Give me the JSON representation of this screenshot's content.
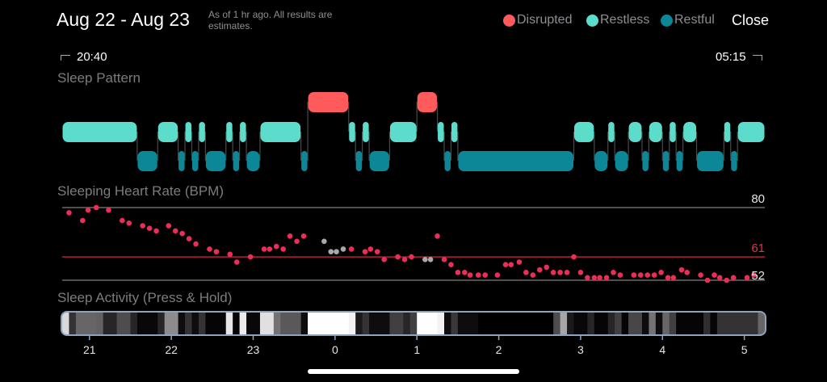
{
  "header": {
    "title": "Aug 22 - Aug 23",
    "subtitle": "As of 1 hr ago. All results are estimates.",
    "close_label": "Close"
  },
  "legend": [
    {
      "label": "Disrupted",
      "color": "#ff5a5c"
    },
    {
      "label": "Restless",
      "color": "#5cdccb"
    },
    {
      "label": "Restful",
      "color": "#0b8797"
    }
  ],
  "range": {
    "start": "20:40",
    "end": "05:15",
    "duration_min": 515
  },
  "sections": {
    "pattern": "Sleep Pattern",
    "heart_rate": "Sleeping Heart Rate (BPM)",
    "activity": "Sleep Activity (Press & Hold)"
  },
  "chart_data": {
    "sleep_pattern": {
      "type": "timeline",
      "units": "minutes after 20:40",
      "segments": [
        [
          "Restless",
          0,
          55
        ],
        [
          "Restful",
          55,
          70
        ],
        [
          "Restless",
          70,
          85
        ],
        [
          "Restful",
          85,
          90
        ],
        [
          "Restless",
          90,
          95
        ],
        [
          "Restful",
          95,
          100
        ],
        [
          "Restless",
          100,
          105
        ],
        [
          "Restful",
          105,
          120
        ],
        [
          "Restless",
          120,
          125
        ],
        [
          "Restful",
          125,
          130
        ],
        [
          "Restless",
          130,
          135
        ],
        [
          "Restful",
          135,
          145
        ],
        [
          "Restless",
          145,
          175
        ],
        [
          "Restful",
          175,
          180
        ],
        [
          "Disrupted",
          180,
          210
        ],
        [
          "Restless",
          210,
          215
        ],
        [
          "Restful",
          215,
          220
        ],
        [
          "Restless",
          220,
          225
        ],
        [
          "Restful",
          225,
          240
        ],
        [
          "Restless",
          240,
          260
        ],
        [
          "Disrupted",
          260,
          275
        ],
        [
          "Restless",
          275,
          280
        ],
        [
          "Restful",
          280,
          285
        ],
        [
          "Restless",
          285,
          290
        ],
        [
          "Restful",
          290,
          375
        ],
        [
          "Restless",
          375,
          390
        ],
        [
          "Restful",
          390,
          400
        ],
        [
          "Restless",
          400,
          405
        ],
        [
          "Restful",
          405,
          415
        ],
        [
          "Restless",
          415,
          425
        ],
        [
          "Restful",
          425,
          430
        ],
        [
          "Restless",
          430,
          440
        ],
        [
          "Restful",
          440,
          445
        ],
        [
          "Restless",
          445,
          450
        ],
        [
          "Restful",
          450,
          455
        ],
        [
          "Restless",
          455,
          465
        ],
        [
          "Restful",
          465,
          485
        ],
        [
          "Restless",
          485,
          490
        ],
        [
          "Restful",
          490,
          495
        ],
        [
          "Restless",
          495,
          515
        ]
      ]
    },
    "heart_rate": {
      "type": "scatter",
      "units_x": "minutes after 20:40",
      "ylabel": "BPM",
      "reference_lines": {
        "max": 80,
        "avg": 61,
        "min": 52
      },
      "max_label": "80",
      "avg_label": "61",
      "min_label": "52",
      "points": [
        [
          5,
          78
        ],
        [
          15,
          75
        ],
        [
          19,
          79
        ],
        [
          25,
          80
        ],
        [
          34,
          79
        ],
        [
          44,
          75
        ],
        [
          49,
          74
        ],
        [
          59,
          73
        ],
        [
          64,
          72
        ],
        [
          69,
          71
        ],
        [
          78,
          73
        ],
        [
          83,
          71
        ],
        [
          88,
          70
        ],
        [
          93,
          68
        ],
        [
          98,
          66
        ],
        [
          108,
          64
        ],
        [
          113,
          63
        ],
        [
          123,
          62
        ],
        [
          128,
          59
        ],
        [
          138,
          61
        ],
        [
          148,
          64
        ],
        [
          152,
          64
        ],
        [
          157,
          65
        ],
        [
          162,
          64
        ],
        [
          167,
          69
        ],
        [
          172,
          67
        ],
        [
          177,
          69
        ],
        [
          192,
          67,
          "g"
        ],
        [
          197,
          63,
          "g"
        ],
        [
          201,
          63,
          "g"
        ],
        [
          206,
          64,
          "g"
        ],
        [
          212,
          64
        ],
        [
          222,
          63
        ],
        [
          226,
          64
        ],
        [
          231,
          63
        ],
        [
          236,
          60
        ],
        [
          246,
          61
        ],
        [
          251,
          60
        ],
        [
          256,
          61
        ],
        [
          266,
          60,
          "g"
        ],
        [
          270,
          60,
          "g"
        ],
        [
          275,
          69
        ],
        [
          280,
          60
        ],
        [
          285,
          58
        ],
        [
          290,
          55
        ],
        [
          295,
          55
        ],
        [
          299,
          54
        ],
        [
          305,
          54
        ],
        [
          310,
          54
        ],
        [
          319,
          54
        ],
        [
          325,
          58
        ],
        [
          329,
          58
        ],
        [
          335,
          59
        ],
        [
          340,
          55
        ],
        [
          345,
          54
        ],
        [
          350,
          56
        ],
        [
          355,
          57
        ],
        [
          360,
          55
        ],
        [
          365,
          55
        ],
        [
          370,
          55
        ],
        [
          375,
          61
        ],
        [
          380,
          55
        ],
        [
          385,
          53
        ],
        [
          390,
          53
        ],
        [
          394,
          53
        ],
        [
          399,
          53
        ],
        [
          404,
          55
        ],
        [
          409,
          54
        ],
        [
          419,
          54
        ],
        [
          424,
          54
        ],
        [
          429,
          54
        ],
        [
          434,
          54
        ],
        [
          439,
          55
        ],
        [
          444,
          53
        ],
        [
          448,
          53
        ],
        [
          454,
          56
        ],
        [
          458,
          55
        ],
        [
          468,
          54
        ],
        [
          473,
          52
        ],
        [
          478,
          54
        ],
        [
          482,
          53
        ],
        [
          487,
          52
        ],
        [
          492,
          53
        ],
        [
          502,
          53
        ],
        [
          507,
          54
        ]
      ]
    },
    "activity": {
      "type": "heatmap",
      "units": "minutes after 20:40, intensity 0-1",
      "segments": [
        [
          0,
          5,
          0.85
        ],
        [
          5,
          10,
          0.2
        ],
        [
          10,
          25,
          0.4
        ],
        [
          25,
          30,
          0.38
        ],
        [
          30,
          40,
          0.15
        ],
        [
          40,
          50,
          0.3
        ],
        [
          50,
          55,
          0.15
        ],
        [
          55,
          70,
          0.03
        ],
        [
          70,
          75,
          0.15
        ],
        [
          75,
          85,
          0.55
        ],
        [
          85,
          90,
          0.05
        ],
        [
          90,
          95,
          0.2
        ],
        [
          95,
          100,
          0.05
        ],
        [
          100,
          105,
          0.2
        ],
        [
          105,
          120,
          0.02
        ],
        [
          120,
          125,
          0.9
        ],
        [
          125,
          130,
          0.02
        ],
        [
          130,
          135,
          0.92
        ],
        [
          135,
          145,
          0.03
        ],
        [
          145,
          155,
          0.88
        ],
        [
          155,
          160,
          0.45
        ],
        [
          160,
          175,
          0.35
        ],
        [
          175,
          180,
          0.05
        ],
        [
          180,
          210,
          1
        ],
        [
          210,
          215,
          0.95
        ],
        [
          215,
          220,
          0.1
        ],
        [
          220,
          225,
          0.2
        ],
        [
          225,
          240,
          0.05
        ],
        [
          240,
          250,
          0.25
        ],
        [
          250,
          255,
          0.15
        ],
        [
          255,
          260,
          0.25
        ],
        [
          260,
          275,
          1
        ],
        [
          275,
          280,
          0.95
        ],
        [
          280,
          285,
          0.05
        ],
        [
          285,
          290,
          0.22
        ],
        [
          290,
          305,
          0.05
        ],
        [
          305,
          360,
          0
        ],
        [
          360,
          365,
          0.3
        ],
        [
          365,
          370,
          0.65
        ],
        [
          370,
          375,
          0.1
        ],
        [
          375,
          385,
          0.03
        ],
        [
          385,
          390,
          0.15
        ],
        [
          390,
          400,
          0.02
        ],
        [
          400,
          405,
          0.15
        ],
        [
          405,
          410,
          0.25
        ],
        [
          410,
          415,
          0.02
        ],
        [
          415,
          425,
          0.28
        ],
        [
          425,
          430,
          0.05
        ],
        [
          430,
          435,
          0.45
        ],
        [
          435,
          440,
          0.05
        ],
        [
          440,
          445,
          0.4
        ],
        [
          445,
          450,
          0.25
        ],
        [
          450,
          470,
          0.02
        ],
        [
          470,
          475,
          0.18
        ],
        [
          475,
          480,
          0.02
        ],
        [
          480,
          510,
          0.2
        ],
        [
          510,
          515,
          0.4
        ]
      ],
      "hour_ticks": [
        [
          "21",
          20
        ],
        [
          "22",
          80
        ],
        [
          "23",
          140
        ],
        [
          "0",
          200
        ],
        [
          "1",
          260
        ],
        [
          "2",
          320
        ],
        [
          "3",
          380
        ],
        [
          "4",
          440
        ],
        [
          "5",
          500
        ]
      ]
    }
  }
}
